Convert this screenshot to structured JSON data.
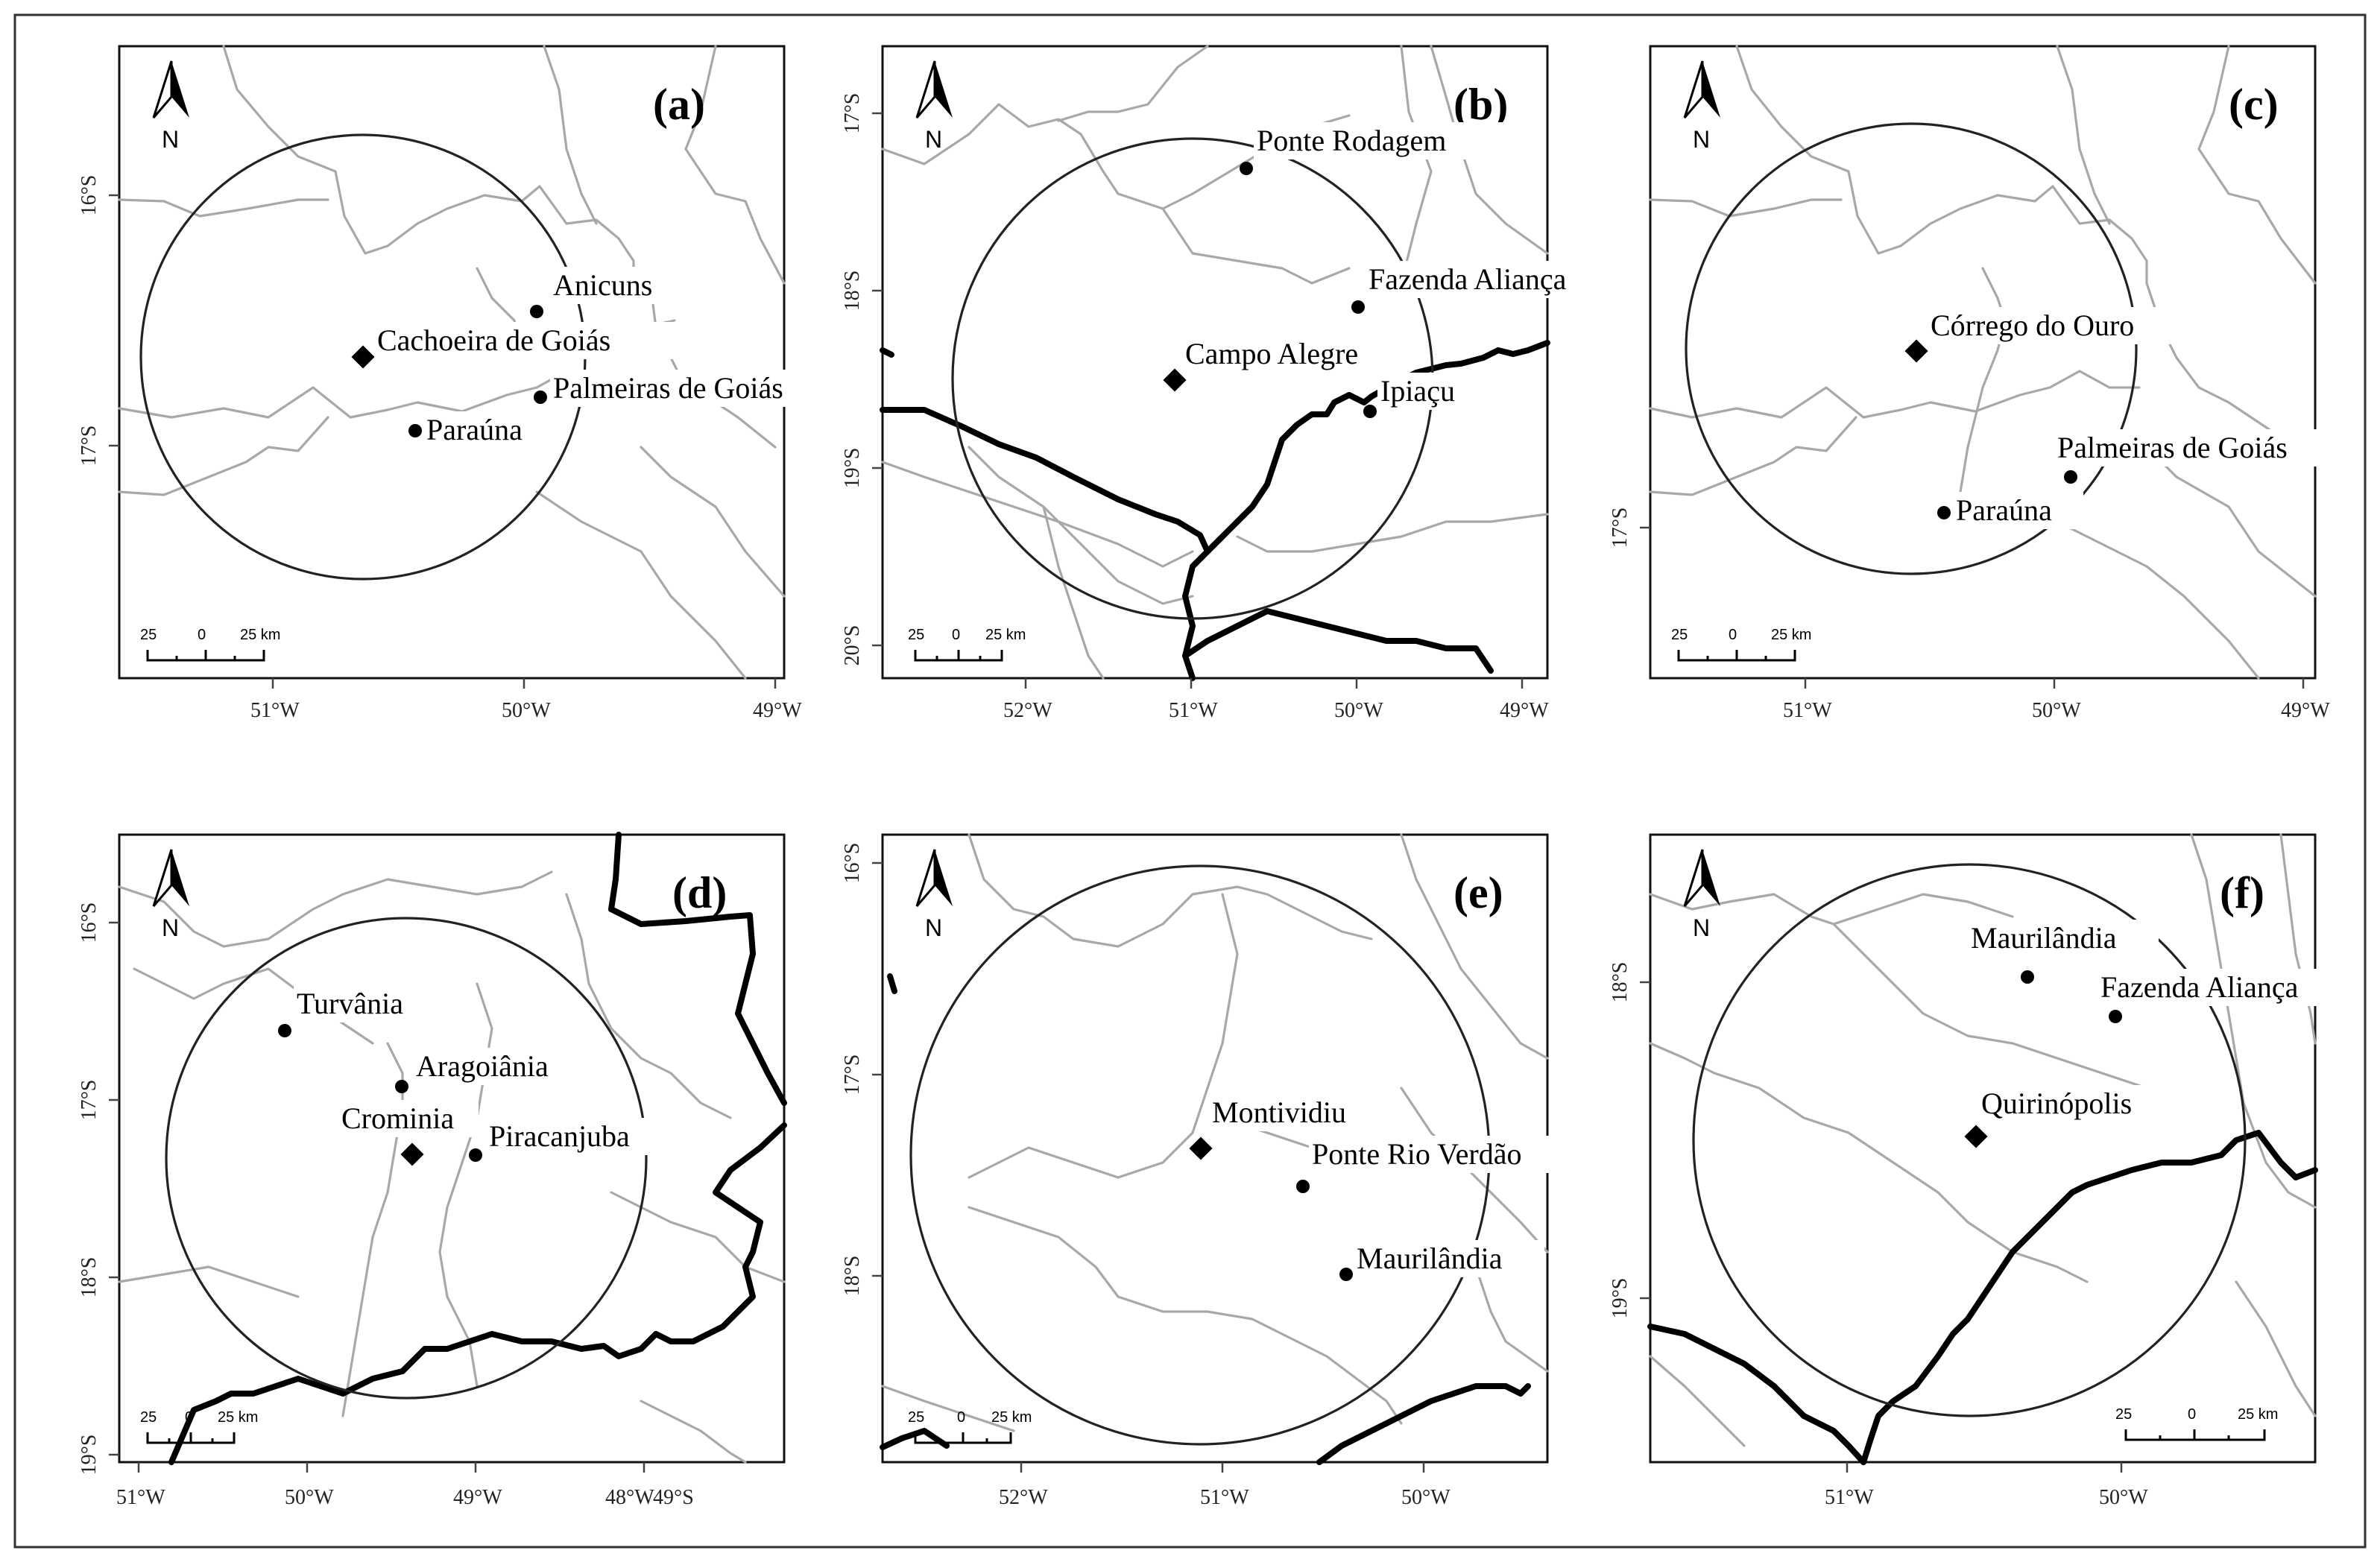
{
  "colors": {
    "river": "#a8a8a8",
    "boundary": "#000000",
    "circle": "#222222",
    "marker": "#000000",
    "background": "#ffffff"
  },
  "north_label": "N",
  "scale": {
    "left": "25",
    "zero": "0",
    "right": "25 km"
  },
  "panels": [
    {
      "id": "a",
      "label": "(a)",
      "x_ticks": [
        "51°W",
        "50°W",
        "49°W"
      ],
      "y_ticks": [
        "16°S",
        "17°S"
      ],
      "center": {
        "name": "Cachoeira de Goiás",
        "marker": "diamond"
      },
      "stations": [
        {
          "name": "Anicuns"
        },
        {
          "name": "Palmeiras de Goiás"
        },
        {
          "name": "Paraúna"
        }
      ]
    },
    {
      "id": "b",
      "label": "(b)",
      "x_ticks": [
        "52°W",
        "51°W",
        "50°W",
        "49°W"
      ],
      "y_ticks": [
        "17°S",
        "18°S",
        "19°S",
        "20°S"
      ],
      "center": {
        "name": "Campo Alegre",
        "marker": "diamond"
      },
      "stations": [
        {
          "name": "Ponte Rodagem"
        },
        {
          "name": "Fazenda Aliança"
        },
        {
          "name": "Ipiaçu"
        }
      ]
    },
    {
      "id": "c",
      "label": "(c)",
      "x_ticks": [
        "51°W",
        "50°W",
        "49°W"
      ],
      "y_ticks": [
        "17°S"
      ],
      "center": {
        "name": "Córrego do Ouro",
        "marker": "diamond"
      },
      "stations": [
        {
          "name": "Palmeiras de Goiás"
        },
        {
          "name": "Paraúna"
        }
      ]
    },
    {
      "id": "d",
      "label": "(d)",
      "x_ticks": [
        "51°W",
        "50°W",
        "49°W",
        "48°W",
        "49°S"
      ],
      "y_ticks": [
        "16°S",
        "17°S",
        "18°S",
        "19°S"
      ],
      "center": {
        "name": "Crominia",
        "marker": "diamond"
      },
      "stations": [
        {
          "name": "Turvânia"
        },
        {
          "name": "Aragoiânia"
        },
        {
          "name": "Piracanjuba"
        }
      ]
    },
    {
      "id": "e",
      "label": "(e)",
      "x_ticks": [
        "52°W",
        "51°W",
        "50°W"
      ],
      "y_ticks": [
        "16°S",
        "17°S",
        "18°S"
      ],
      "center": {
        "name": "Montividiu",
        "marker": "diamond"
      },
      "stations": [
        {
          "name": "Ponte Rio Verdão"
        },
        {
          "name": "Maurilândia"
        }
      ]
    },
    {
      "id": "f",
      "label": "(f)",
      "x_ticks": [
        "51°W",
        "50°W"
      ],
      "y_ticks": [
        "18°S",
        "19°S"
      ],
      "center": {
        "name": "Quirinópolis",
        "marker": "diamond"
      },
      "stations": [
        {
          "name": "Maurilândia"
        },
        {
          "name": "Fazenda Aliança"
        }
      ]
    }
  ]
}
